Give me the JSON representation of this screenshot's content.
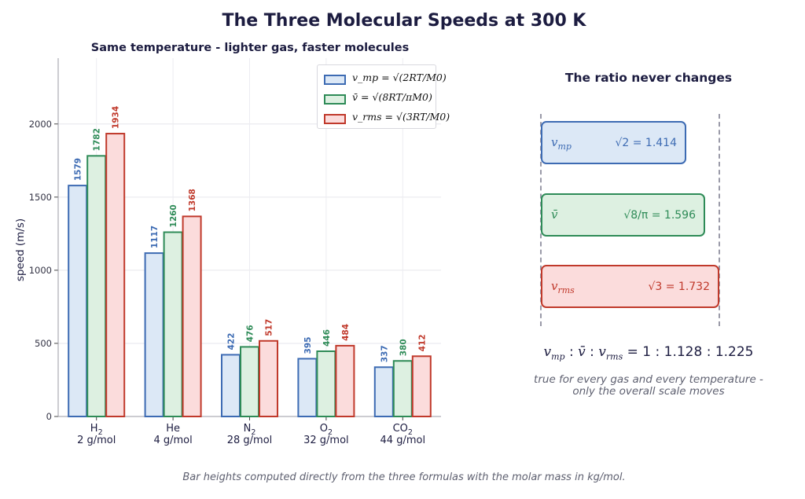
{
  "title": "The Three Molecular Speeds at 300 K",
  "footnote": "Bar heights computed directly from the three formulas with the molar mass in kg/mol.",
  "colors": {
    "vmp": {
      "fill": "#dce8f6",
      "stroke": "#3d6bb3"
    },
    "vavg": {
      "fill": "#ddf0e1",
      "stroke": "#2e8b57"
    },
    "vrms": {
      "fill": "#fbdcdc",
      "stroke": "#c0392b"
    }
  },
  "chart_data": {
    "type": "bar",
    "title": "Same temperature - lighter gas, faster molecules",
    "xlabel": "",
    "ylabel": "speed  (m/s)",
    "ylim": [
      0,
      2450
    ],
    "yticks": [
      0,
      500,
      1000,
      1500,
      2000
    ],
    "grid": true,
    "legend_position": "top-right",
    "categories": [
      {
        "formula": "H",
        "sub": "2",
        "mass": "2 g/mol"
      },
      {
        "formula": "He",
        "sub": "",
        "mass": "4 g/mol"
      },
      {
        "formula": "N",
        "sub": "2",
        "mass": "28 g/mol"
      },
      {
        "formula": "O",
        "sub": "2",
        "mass": "32 g/mol"
      },
      {
        "formula": "CO",
        "sub": "2",
        "mass": "44 g/mol"
      }
    ],
    "series": [
      {
        "name": "v_mp = √(2RT/M0)",
        "key": "vmp",
        "values": [
          1579,
          1117,
          422,
          395,
          337
        ]
      },
      {
        "name": "v̄ = √(8RT/πM0)",
        "key": "vavg",
        "values": [
          1782,
          1260,
          476,
          446,
          380
        ]
      },
      {
        "name": "v_rms = √(3RT/M0)",
        "key": "vrms",
        "values": [
          1934,
          1368,
          517,
          484,
          412
        ]
      }
    ]
  },
  "ratio_panel": {
    "title": "The ratio never changes",
    "boxes": [
      {
        "symbol": "v",
        "symbol_sub": "mp",
        "value": "√2  =  1.414"
      },
      {
        "symbol": "v̄",
        "symbol_sub": "",
        "value": "√8/π  =  1.596"
      },
      {
        "symbol": "v",
        "symbol_sub": "rms",
        "value": "√3  =  1.732"
      }
    ],
    "ratio_line": "1 : 1.128 : 1.225",
    "note_line1": "true for every gas and every temperature -",
    "note_line2": "only the overall scale moves"
  }
}
